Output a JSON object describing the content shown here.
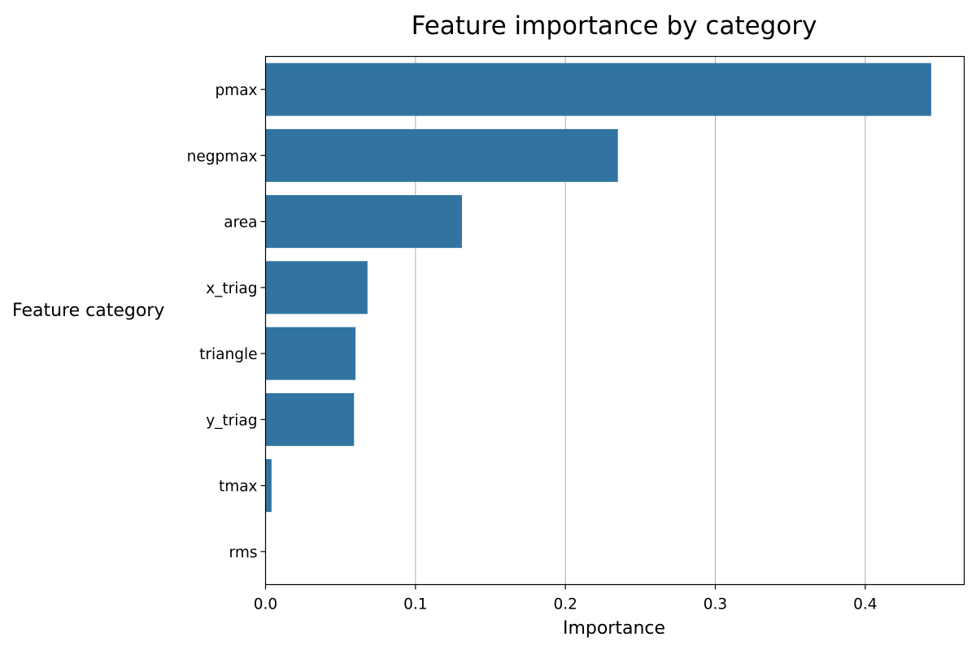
{
  "chart_data": {
    "type": "bar",
    "orientation": "horizontal",
    "title": "Feature importance by category",
    "xlabel": "Importance",
    "ylabel": "Feature category",
    "categories": [
      "pmax",
      "negpmax",
      "area",
      "x_triag",
      "triangle",
      "y_triag",
      "tmax",
      "rms"
    ],
    "values": [
      0.444,
      0.235,
      0.131,
      0.068,
      0.06,
      0.059,
      0.004,
      0.0
    ],
    "xlim": [
      0.0,
      0.466
    ],
    "xticks": [
      0.0,
      0.1,
      0.2,
      0.3,
      0.4
    ],
    "xtick_labels": [
      "0.0",
      "0.1",
      "0.2",
      "0.3",
      "0.4"
    ],
    "grid": "vertical",
    "bar_color": "#3274a1",
    "grid_color": "#b0b0b0"
  }
}
